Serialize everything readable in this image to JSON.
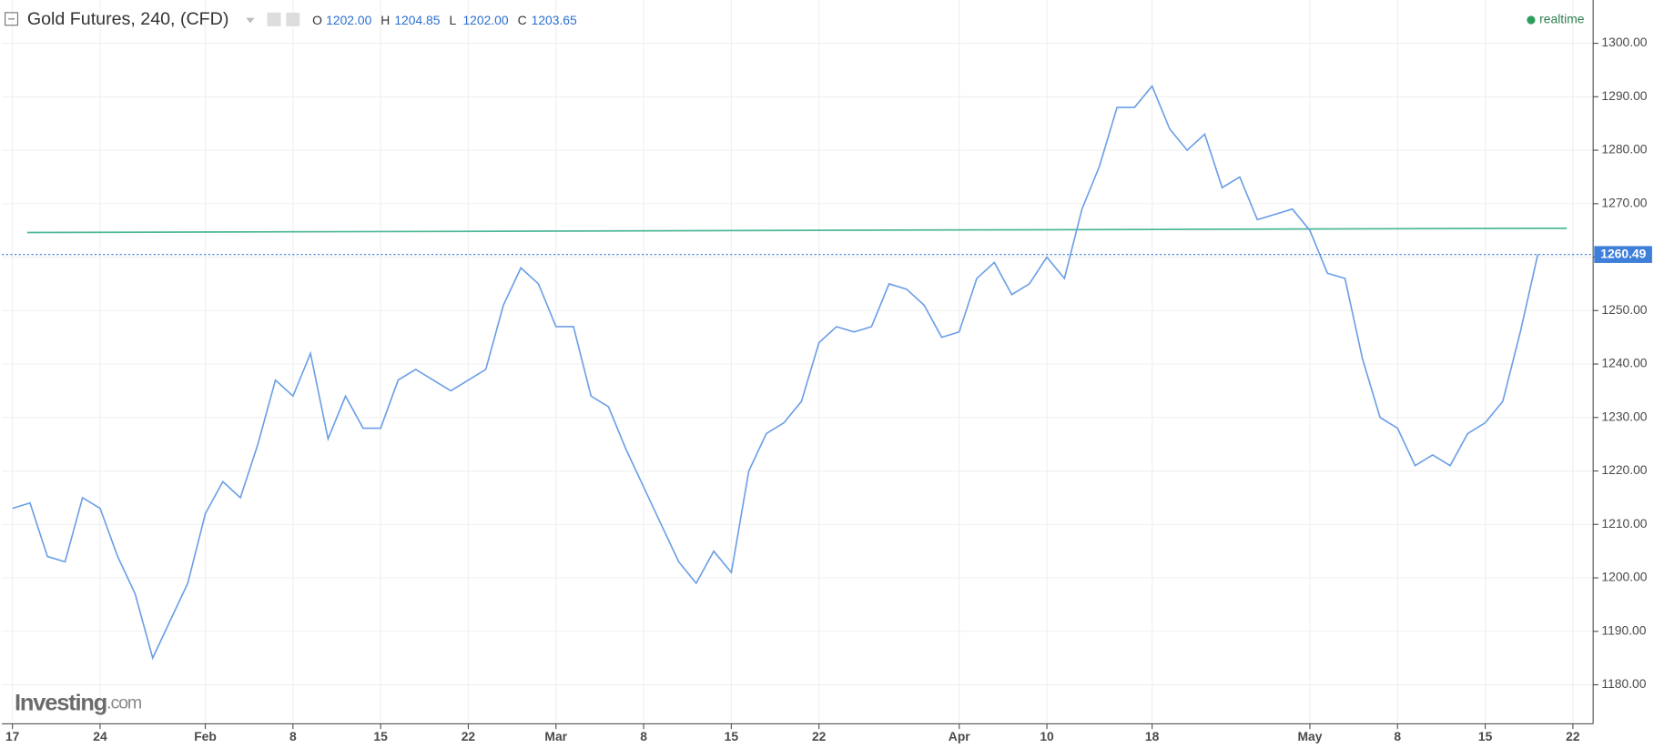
{
  "chart_data": {
    "type": "line",
    "title": "Gold Futures, 240, (CFD)",
    "ohlc": [
      {
        "key": "O",
        "text": "1202.00"
      },
      {
        "key": "H",
        "text": "1204.85"
      },
      {
        "key": "L",
        "text": "1202.00"
      },
      {
        "key": "C",
        "text": "1203.65"
      }
    ],
    "status": "realtime",
    "brand": {
      "name": "Investing",
      "suffix": ".com"
    },
    "categories": [
      "17",
      null,
      null,
      null,
      null,
      "24",
      null,
      null,
      null,
      null,
      null,
      "Feb",
      null,
      null,
      null,
      null,
      "8",
      null,
      null,
      null,
      null,
      "15",
      null,
      null,
      null,
      null,
      "22",
      null,
      null,
      null,
      null,
      "Mar",
      null,
      null,
      null,
      null,
      "8",
      null,
      null,
      null,
      null,
      "15",
      null,
      null,
      null,
      null,
      "22",
      null,
      null,
      null,
      null,
      null,
      null,
      null,
      "Apr",
      null,
      null,
      null,
      null,
      "10",
      null,
      null,
      null,
      null,
      null,
      "18",
      null,
      null,
      null,
      null,
      null,
      null,
      null,
      null,
      "May",
      null,
      null,
      null,
      null,
      "8",
      null,
      null,
      null,
      null,
      "15",
      null,
      null,
      null,
      null,
      "22"
    ],
    "series": [
      {
        "name": "Gold Futures",
        "color": "#6a9ee6",
        "values": [
          1213,
          1214,
          1204,
          1203,
          1215,
          1213,
          1204,
          1197,
          1185,
          1192,
          1199,
          1212,
          1218,
          1215,
          1225,
          1237,
          1234,
          1242,
          1226,
          1234,
          1228,
          1228,
          1237,
          1239,
          1237,
          1235,
          1237,
          1239,
          1251,
          1258,
          1255,
          1247,
          1247,
          1234,
          1232,
          1224,
          1217,
          1210,
          1203,
          1199,
          1205,
          1201,
          1220,
          1227,
          1229,
          1233,
          1244,
          1247,
          1246,
          1247,
          1255,
          1254,
          1251,
          1245,
          1246,
          1256,
          1259,
          1253,
          1255,
          1260,
          1256,
          1269,
          1277,
          1288,
          1288,
          1292,
          1284,
          1280,
          1283,
          1273,
          1275,
          1267,
          1268,
          1269,
          1265,
          1257,
          1256,
          1241,
          1230,
          1228,
          1221,
          1223,
          1221,
          1227,
          1229,
          1233,
          1246,
          1260.49,
          null,
          null
        ]
      }
    ],
    "trendline": {
      "start": 1264.6,
      "end": 1265.4,
      "color": "#4fb89a"
    },
    "last_color": "#3d7fd9",
    "ylim": [
      1172.7,
      1308.1
    ],
    "yticks": [
      {
        "value": 1180,
        "label": "1180.00"
      },
      {
        "value": 1190,
        "label": "1190.00"
      },
      {
        "value": 1200,
        "label": "1200.00"
      },
      {
        "value": 1210,
        "label": "1210.00"
      },
      {
        "value": 1220,
        "label": "1220.00"
      },
      {
        "value": 1230,
        "label": "1230.00"
      },
      {
        "value": 1240,
        "label": "1240.00"
      },
      {
        "value": 1250,
        "label": "1250.00"
      },
      {
        "value": 1260,
        "label": "1260.00"
      },
      {
        "value": 1270,
        "label": "1270.00"
      },
      {
        "value": 1280,
        "label": "1280.00"
      },
      {
        "value": 1290,
        "label": "1290.00"
      },
      {
        "value": 1300,
        "label": "1300.00"
      }
    ],
    "grid": true
  }
}
